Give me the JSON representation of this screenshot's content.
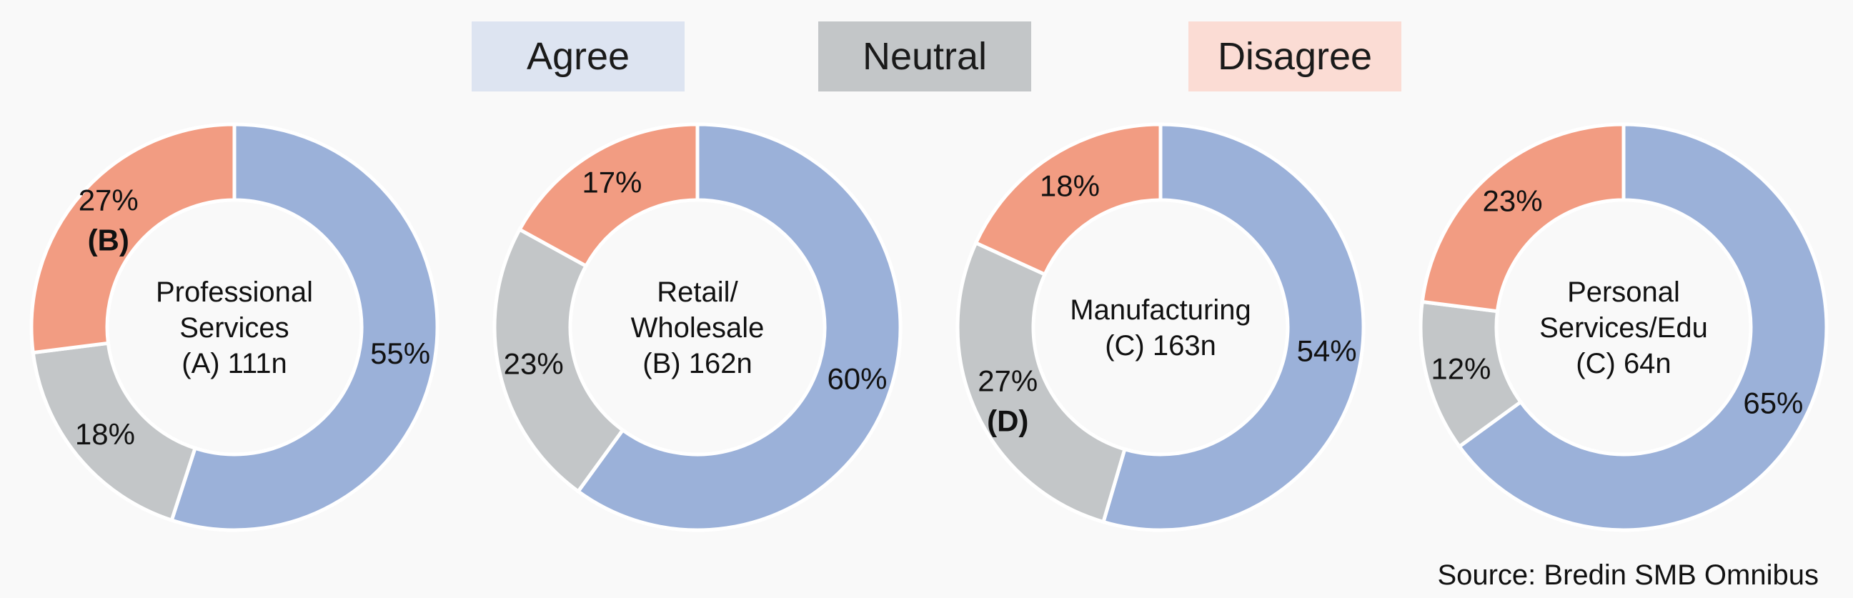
{
  "legend": [
    {
      "label": "Agree",
      "color": "#dde4f1"
    },
    {
      "label": "Neutral",
      "color": "#c3c6c8"
    },
    {
      "label": "Disagree",
      "color": "#fbdcd4"
    }
  ],
  "source": "Source: Bredin SMB Omnibus",
  "colors": {
    "Agree": "#9bb1d9",
    "Neutral": "#c3c6c8",
    "Disagree": "#f29c82"
  },
  "chart_data": [
    {
      "type": "pie",
      "center_label": [
        "Professional",
        "Services",
        "(A) 111n"
      ],
      "slices": [
        {
          "name": "Agree",
          "value": 55,
          "label": "55%"
        },
        {
          "name": "Neutral",
          "value": 18,
          "label": "18%"
        },
        {
          "name": "Disagree",
          "value": 27,
          "label": "27%",
          "note": "(B)"
        }
      ]
    },
    {
      "type": "pie",
      "center_label": [
        "Retail/",
        "Wholesale",
        "(B) 162n"
      ],
      "slices": [
        {
          "name": "Agree",
          "value": 60,
          "label": "60%"
        },
        {
          "name": "Neutral",
          "value": 23,
          "label": "23%"
        },
        {
          "name": "Disagree",
          "value": 17,
          "label": "17%"
        }
      ]
    },
    {
      "type": "pie",
      "center_label": [
        "Manufacturing",
        "(C) 163n"
      ],
      "slices": [
        {
          "name": "Agree",
          "value": 54,
          "label": "54%"
        },
        {
          "name": "Neutral",
          "value": 27,
          "label": "27%",
          "note": "(D)"
        },
        {
          "name": "Disagree",
          "value": 18,
          "label": "18%"
        }
      ]
    },
    {
      "type": "pie",
      "center_label": [
        "Personal",
        "Services/Edu",
        "(C) 64n"
      ],
      "slices": [
        {
          "name": "Agree",
          "value": 65,
          "label": "65%"
        },
        {
          "name": "Neutral",
          "value": 12,
          "label": "12%"
        },
        {
          "name": "Disagree",
          "value": 23,
          "label": "23%"
        }
      ]
    }
  ]
}
